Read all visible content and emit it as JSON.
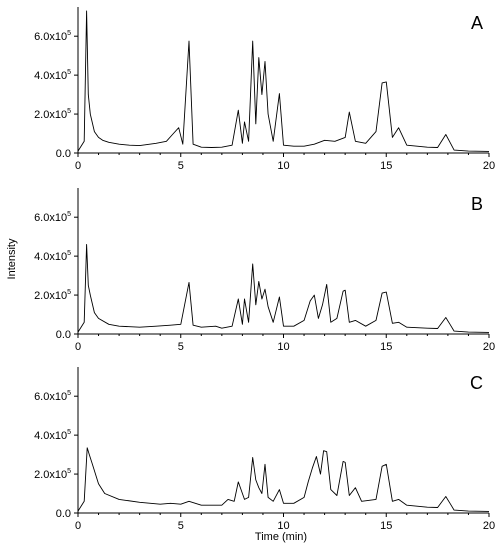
{
  "chart_data": {
    "type": "line",
    "xlabel": "Time (min)",
    "ylabel": "Intensity",
    "xlim": [
      0,
      20
    ],
    "ylim": [
      0,
      750000
    ],
    "x_ticks": [
      0,
      5,
      10,
      15,
      20
    ],
    "x_tick_labels": [
      "0",
      "5",
      "10",
      "15",
      "20"
    ],
    "y_ticks": [
      {
        "value": 0,
        "mantissa": "0.0",
        "exponent": ""
      },
      {
        "value": 200000,
        "mantissa": "2.0x10",
        "exponent": "5"
      },
      {
        "value": 400000,
        "mantissa": "4.0x10",
        "exponent": "5"
      },
      {
        "value": 600000,
        "mantissa": "6.0x10",
        "exponent": "5"
      }
    ],
    "panels": [
      {
        "label": "A",
        "baseline": 20000,
        "x": [
          0.0,
          0.3,
          0.42,
          0.5,
          0.6,
          0.8,
          1.0,
          1.2,
          1.5,
          2.0,
          2.5,
          3.0,
          3.8,
          4.3,
          4.6,
          4.9,
          5.1,
          5.4,
          5.6,
          6.0,
          6.5,
          7.0,
          7.5,
          7.8,
          8.0,
          8.1,
          8.3,
          8.5,
          8.65,
          8.8,
          8.95,
          9.1,
          9.25,
          9.5,
          9.8,
          10.0,
          10.5,
          11.0,
          11.5,
          12.0,
          12.5,
          13.0,
          13.2,
          13.5,
          14.0,
          14.5,
          14.8,
          15.0,
          15.3,
          15.6,
          16.0,
          16.5,
          17.0,
          17.5,
          17.9,
          18.1,
          18.3,
          19.0,
          20.0
        ],
        "y": [
          10000,
          60000,
          730000,
          300000,
          200000,
          110000,
          80000,
          65000,
          55000,
          45000,
          40000,
          38000,
          50000,
          60000,
          95000,
          130000,
          45000,
          575000,
          45000,
          30000,
          28000,
          30000,
          40000,
          220000,
          50000,
          160000,
          60000,
          575000,
          150000,
          490000,
          300000,
          470000,
          200000,
          60000,
          305000,
          40000,
          35000,
          35000,
          45000,
          65000,
          60000,
          80000,
          210000,
          60000,
          50000,
          110000,
          360000,
          365000,
          80000,
          130000,
          40000,
          35000,
          30000,
          28000,
          95000,
          55000,
          15000,
          10000,
          8000
        ]
      },
      {
        "label": "B",
        "baseline": 20000,
        "x": [
          0.0,
          0.3,
          0.42,
          0.5,
          0.6,
          0.8,
          1.0,
          1.5,
          2.0,
          3.0,
          3.8,
          4.5,
          5.0,
          5.4,
          5.6,
          6.0,
          6.7,
          7.0,
          7.5,
          7.8,
          8.0,
          8.1,
          8.3,
          8.5,
          8.65,
          8.8,
          8.95,
          9.1,
          9.25,
          9.5,
          9.8,
          10.0,
          10.5,
          11.0,
          11.3,
          11.5,
          11.7,
          11.9,
          12.1,
          12.3,
          12.6,
          12.9,
          13.0,
          13.2,
          13.5,
          14.0,
          14.5,
          14.8,
          15.0,
          15.3,
          15.6,
          16.0,
          17.0,
          17.5,
          17.9,
          18.1,
          18.3,
          19.0,
          20.0
        ],
        "y": [
          10000,
          60000,
          460000,
          250000,
          200000,
          110000,
          80000,
          50000,
          40000,
          35000,
          40000,
          45000,
          50000,
          265000,
          45000,
          35000,
          40000,
          30000,
          40000,
          180000,
          50000,
          180000,
          60000,
          360000,
          150000,
          270000,
          180000,
          230000,
          140000,
          60000,
          190000,
          40000,
          40000,
          70000,
          170000,
          200000,
          80000,
          150000,
          255000,
          60000,
          80000,
          220000,
          225000,
          60000,
          70000,
          40000,
          70000,
          210000,
          215000,
          55000,
          60000,
          35000,
          30000,
          28000,
          85000,
          50000,
          15000,
          10000,
          8000
        ]
      },
      {
        "label": "C",
        "baseline": 20000,
        "x": [
          0.0,
          0.3,
          0.45,
          0.55,
          0.7,
          1.0,
          1.3,
          2.0,
          3.0,
          4.0,
          4.5,
          5.0,
          5.4,
          6.0,
          6.5,
          7.0,
          7.3,
          7.6,
          7.8,
          8.1,
          8.3,
          8.5,
          8.65,
          8.8,
          8.95,
          9.1,
          9.25,
          9.5,
          9.8,
          10.0,
          10.5,
          11.0,
          11.2,
          11.4,
          11.6,
          11.8,
          11.95,
          12.1,
          12.3,
          12.6,
          12.9,
          13.0,
          13.2,
          13.5,
          13.8,
          14.5,
          14.8,
          15.0,
          15.3,
          15.6,
          16.0,
          17.0,
          17.5,
          17.9,
          18.1,
          18.3,
          19.0,
          20.0
        ],
        "y": [
          10000,
          60000,
          335000,
          300000,
          250000,
          150000,
          100000,
          70000,
          55000,
          45000,
          50000,
          45000,
          60000,
          40000,
          40000,
          40000,
          70000,
          60000,
          160000,
          70000,
          80000,
          285000,
          170000,
          130000,
          100000,
          250000,
          80000,
          60000,
          120000,
          50000,
          50000,
          80000,
          160000,
          230000,
          290000,
          200000,
          320000,
          315000,
          120000,
          90000,
          265000,
          260000,
          90000,
          130000,
          60000,
          70000,
          240000,
          250000,
          60000,
          70000,
          40000,
          30000,
          28000,
          85000,
          50000,
          15000,
          10000,
          8000
        ]
      }
    ]
  }
}
